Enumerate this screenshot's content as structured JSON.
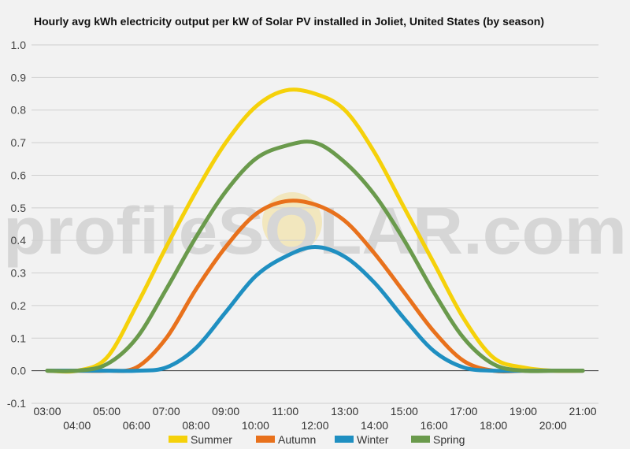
{
  "watermark": "profileSOLAR.com",
  "chart_data": {
    "type": "line",
    "title": "Hourly avg kWh electricity output per kW of Solar PV installed in Joliet, United States (by season)",
    "xlabel": "",
    "ylabel": "",
    "ylim": [
      -0.1,
      1.0
    ],
    "yticks": [
      "-0.1",
      "0.0",
      "0.1",
      "0.2",
      "0.3",
      "0.4",
      "0.5",
      "0.6",
      "0.7",
      "0.8",
      "0.9",
      "1.0"
    ],
    "x": [
      "03:00",
      "04:00",
      "05:00",
      "06:00",
      "07:00",
      "08:00",
      "09:00",
      "10:00",
      "11:00",
      "12:00",
      "13:00",
      "14:00",
      "15:00",
      "16:00",
      "17:00",
      "18:00",
      "19:00",
      "20:00",
      "21:00"
    ],
    "grid": true,
    "legend": "bottom",
    "series": [
      {
        "name": "Summer",
        "color": "#f5d10a",
        "values": [
          0.0,
          0.0,
          0.04,
          0.2,
          0.38,
          0.55,
          0.7,
          0.81,
          0.86,
          0.85,
          0.8,
          0.67,
          0.5,
          0.33,
          0.16,
          0.04,
          0.01,
          0.0,
          0.0
        ]
      },
      {
        "name": "Autumn",
        "color": "#e8711c",
        "values": [
          0.0,
          0.0,
          0.0,
          0.01,
          0.1,
          0.25,
          0.38,
          0.48,
          0.52,
          0.51,
          0.46,
          0.36,
          0.24,
          0.12,
          0.03,
          0.0,
          0.0,
          0.0,
          0.0
        ]
      },
      {
        "name": "Winter",
        "color": "#1f8fc1",
        "values": [
          0.0,
          0.0,
          0.0,
          0.0,
          0.01,
          0.07,
          0.18,
          0.29,
          0.35,
          0.38,
          0.35,
          0.27,
          0.16,
          0.06,
          0.01,
          0.0,
          0.0,
          0.0,
          0.0
        ]
      },
      {
        "name": "Spring",
        "color": "#6a9a4c",
        "values": [
          0.0,
          0.0,
          0.02,
          0.1,
          0.25,
          0.41,
          0.55,
          0.65,
          0.69,
          0.7,
          0.64,
          0.54,
          0.4,
          0.24,
          0.1,
          0.02,
          0.0,
          0.0,
          0.0
        ]
      }
    ]
  }
}
